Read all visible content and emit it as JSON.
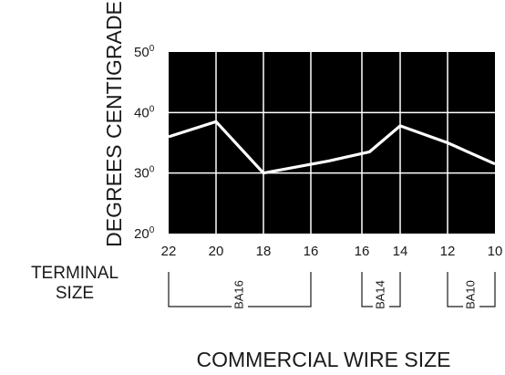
{
  "chart_data": {
    "type": "line",
    "ylabel": "DEGREES CENTIGRADE",
    "xlabel": "COMMERCIAL WIRE SIZE",
    "row_label_line1": "TERMINAL",
    "row_label_line2": "SIZE",
    "y_ticks": [
      {
        "num": "50",
        "sup": "0",
        "value": 50
      },
      {
        "num": "40",
        "sup": "0",
        "value": 40
      },
      {
        "num": "30",
        "sup": "0",
        "value": 30
      },
      {
        "num": "20",
        "sup": "0",
        "value": 20
      }
    ],
    "ylim": [
      20,
      50
    ],
    "x_ticks": [
      "22",
      "20",
      "18",
      "16",
      "16",
      "14",
      "12",
      "10"
    ],
    "x_index_range": [
      0,
      7
    ],
    "series": [
      {
        "x_index": [
          0,
          1,
          2,
          3.35,
          4.2,
          5,
          6,
          7
        ],
        "values": [
          36,
          38.5,
          30,
          32,
          33.5,
          37.8,
          35,
          31.5
        ]
      }
    ],
    "groups": [
      {
        "label": "BA16",
        "from_index": 0,
        "to_index": 3
      },
      {
        "label": "BA14",
        "from_index": 4,
        "to_index": 5
      },
      {
        "label": "BA10",
        "from_index": 6,
        "to_index": 7
      }
    ],
    "grid": true,
    "background": "#000000",
    "line_color": "#ffffff"
  }
}
